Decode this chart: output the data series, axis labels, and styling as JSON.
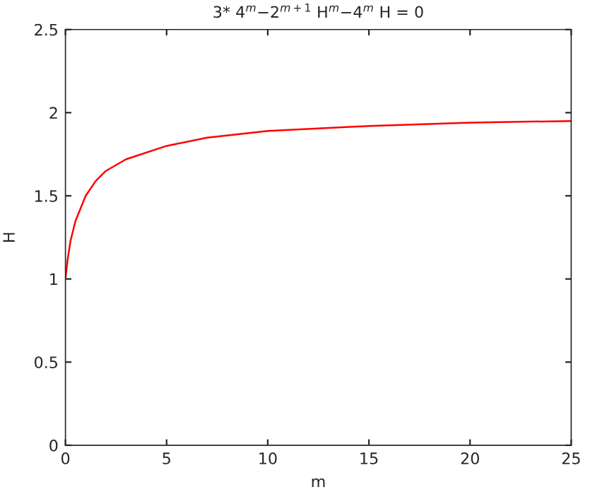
{
  "chart_data": {
    "type": "line",
    "title": "3* 4$^{m}$−2$^{m+1}$ H$^{m}$−4$^{m}$ H = 0",
    "xlabel": "m",
    "ylabel": "H",
    "x": [
      0,
      0.1,
      0.25,
      0.5,
      1,
      1.5,
      2,
      3,
      5,
      7,
      10,
      15,
      20,
      25
    ],
    "series": [
      {
        "color": "#ff0000",
        "values": [
          1,
          1.11,
          1.23,
          1.35,
          1.5,
          1.59,
          1.65,
          1.72,
          1.8,
          1.85,
          1.89,
          1.92,
          1.94,
          1.95
        ]
      }
    ],
    "xlim": [
      0,
      25
    ],
    "xticks": [
      0,
      5,
      10,
      15,
      20,
      25
    ],
    "ylim": [
      0,
      2.5
    ],
    "yticks": [
      0,
      0.5,
      1,
      1.5,
      2,
      2.5
    ],
    "grid": false,
    "legend": false
  }
}
